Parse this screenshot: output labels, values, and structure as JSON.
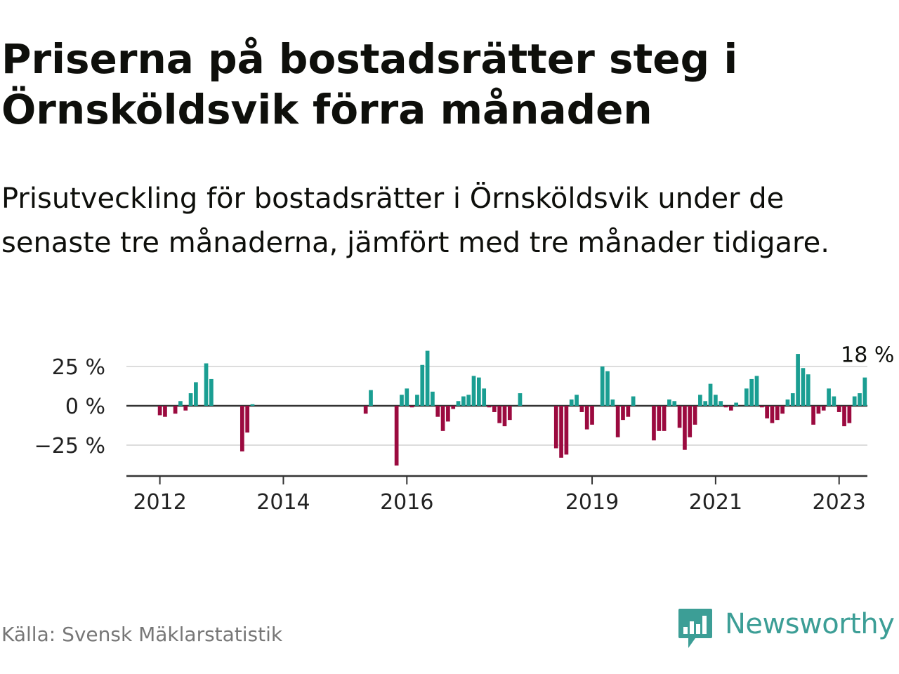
{
  "title": "Priserna på bostadsrätter steg i Örnsköldsvik förra månaden",
  "subtitle": "Prisutveckling för bostadsrätter i Örnsköldsvik under de senaste tre månaderna, jämfört med tre månader tidigare.",
  "source": "Källa: Svensk Mäklarstatistik",
  "logo_text": "Newsworthy",
  "colors": {
    "positive": "#1a9e92",
    "negative": "#9b0a3f",
    "grid": "#dddddd",
    "axis": "#333333",
    "logo": "#3c9e96"
  },
  "chart_data": {
    "type": "bar",
    "y_unit": "%",
    "ylim": [
      -43,
      36
    ],
    "yticks": [
      25,
      0,
      -25
    ],
    "ytick_labels": [
      "25 %",
      "0 %",
      "−25 %"
    ],
    "xticks": [
      {
        "label": "2012",
        "at": "2012-01"
      },
      {
        "label": "2014",
        "at": "2014-01"
      },
      {
        "label": "2016",
        "at": "2016-01"
      },
      {
        "label": "2019",
        "at": "2019-01"
      },
      {
        "label": "2021",
        "at": "2021-01"
      },
      {
        "label": "2023",
        "at": "2023-01"
      }
    ],
    "x_start": "2011-07",
    "x_end": "2023-07",
    "last_label": "18 %",
    "series": [
      {
        "values": [
          [
            "2012-01",
            -6
          ],
          [
            "2012-02",
            -7
          ],
          [
            "2012-04",
            -5
          ],
          [
            "2012-05",
            3
          ],
          [
            "2012-06",
            -3
          ],
          [
            "2012-07",
            8
          ],
          [
            "2012-08",
            15
          ],
          [
            "2012-10",
            27
          ],
          [
            "2012-11",
            17
          ],
          [
            "2013-05",
            -29
          ],
          [
            "2013-06",
            -17
          ],
          [
            "2013-07",
            1
          ],
          [
            "2015-05",
            -5
          ],
          [
            "2015-06",
            10
          ],
          [
            "2015-11",
            -38
          ],
          [
            "2015-12",
            7
          ],
          [
            "2016-01",
            11
          ],
          [
            "2016-02",
            -1
          ],
          [
            "2016-03",
            7
          ],
          [
            "2016-04",
            26
          ],
          [
            "2016-05",
            35
          ],
          [
            "2016-06",
            9
          ],
          [
            "2016-07",
            -7
          ],
          [
            "2016-08",
            -16
          ],
          [
            "2016-09",
            -10
          ],
          [
            "2016-10",
            -2
          ],
          [
            "2016-11",
            3
          ],
          [
            "2016-12",
            6
          ],
          [
            "2017-01",
            7
          ],
          [
            "2017-02",
            19
          ],
          [
            "2017-03",
            18
          ],
          [
            "2017-04",
            11
          ],
          [
            "2017-05",
            -1
          ],
          [
            "2017-06",
            -4
          ],
          [
            "2017-07",
            -11
          ],
          [
            "2017-08",
            -13
          ],
          [
            "2017-09",
            -9
          ],
          [
            "2017-11",
            8
          ],
          [
            "2018-06",
            -27
          ],
          [
            "2018-07",
            -33
          ],
          [
            "2018-08",
            -31
          ],
          [
            "2018-09",
            4
          ],
          [
            "2018-10",
            7
          ],
          [
            "2018-11",
            -4
          ],
          [
            "2018-12",
            -15
          ],
          [
            "2019-01",
            -12
          ],
          [
            "2019-03",
            25
          ],
          [
            "2019-04",
            22
          ],
          [
            "2019-05",
            4
          ],
          [
            "2019-06",
            -20
          ],
          [
            "2019-07",
            -9
          ],
          [
            "2019-08",
            -7
          ],
          [
            "2019-09",
            6
          ],
          [
            "2020-01",
            -22
          ],
          [
            "2020-02",
            -16
          ],
          [
            "2020-03",
            -16
          ],
          [
            "2020-04",
            4
          ],
          [
            "2020-05",
            3
          ],
          [
            "2020-06",
            -14
          ],
          [
            "2020-07",
            -28
          ],
          [
            "2020-08",
            -20
          ],
          [
            "2020-09",
            -12
          ],
          [
            "2020-10",
            7
          ],
          [
            "2020-11",
            3
          ],
          [
            "2020-12",
            14
          ],
          [
            "2021-01",
            7
          ],
          [
            "2021-02",
            3
          ],
          [
            "2021-03",
            -1
          ],
          [
            "2021-04",
            -3
          ],
          [
            "2021-05",
            2
          ],
          [
            "2021-07",
            11
          ],
          [
            "2021-08",
            17
          ],
          [
            "2021-09",
            19
          ],
          [
            "2021-10",
            -1
          ],
          [
            "2021-11",
            -8
          ],
          [
            "2021-12",
            -11
          ],
          [
            "2022-01",
            -9
          ],
          [
            "2022-02",
            -5
          ],
          [
            "2022-03",
            4
          ],
          [
            "2022-04",
            8
          ],
          [
            "2022-05",
            33
          ],
          [
            "2022-06",
            24
          ],
          [
            "2022-07",
            20
          ],
          [
            "2022-08",
            -12
          ],
          [
            "2022-09",
            -5
          ],
          [
            "2022-10",
            -3
          ],
          [
            "2022-11",
            11
          ],
          [
            "2022-12",
            6
          ],
          [
            "2023-01",
            -4
          ],
          [
            "2023-02",
            -13
          ],
          [
            "2023-03",
            -11
          ],
          [
            "2023-04",
            6
          ],
          [
            "2023-05",
            8
          ],
          [
            "2023-06",
            18
          ]
        ]
      }
    ]
  }
}
